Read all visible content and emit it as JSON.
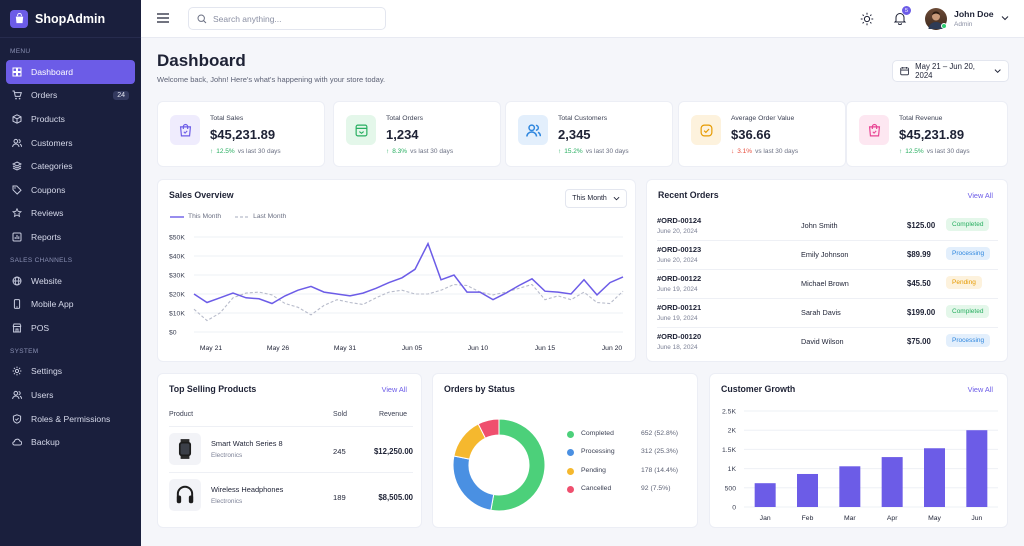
{
  "brand": {
    "name": "ShopAdmin"
  },
  "sidebar": {
    "menu_label": "MENU",
    "menu_items": [
      {
        "label": "Dashboard",
        "icon": "grid-icon",
        "active": true
      },
      {
        "label": "Orders",
        "icon": "cart-icon",
        "badge": "24"
      },
      {
        "label": "Products",
        "icon": "box-icon"
      },
      {
        "label": "Customers",
        "icon": "users-icon"
      },
      {
        "label": "Categories",
        "icon": "layers-icon"
      },
      {
        "label": "Coupons",
        "icon": "tag-icon"
      },
      {
        "label": "Reviews",
        "icon": "star-icon"
      },
      {
        "label": "Reports",
        "icon": "bar-chart-icon"
      }
    ],
    "channels_label": "SALES CHANNELS",
    "channel_items": [
      {
        "label": "Website",
        "icon": "globe-icon"
      },
      {
        "label": "Mobile App",
        "icon": "phone-icon"
      },
      {
        "label": "POS",
        "icon": "store-icon"
      }
    ],
    "system_label": "SYSTEM",
    "system_items": [
      {
        "label": "Settings",
        "icon": "gear-icon"
      },
      {
        "label": "Users",
        "icon": "users-icon"
      },
      {
        "label": "Roles & Permissions",
        "icon": "shield-icon"
      },
      {
        "label": "Backup",
        "icon": "cloud-icon"
      }
    ]
  },
  "topbar": {
    "search_placeholder": "Search anything...",
    "notification_count": "5",
    "user_name": "John Doe",
    "user_role": "Admin"
  },
  "header": {
    "title": "Dashboard",
    "subtitle": "Welcome back, John! Here's what's happening with your store today.",
    "date_range": "May 21 – Jun 20, 2024"
  },
  "stats": [
    {
      "label": "Total Sales",
      "value": "$45,231.89",
      "delta": "12.5%",
      "direction": "up",
      "compare": "vs last 30 days",
      "color": "#6c5ce7",
      "bg": "#efecfd",
      "icon": "bag-icon"
    },
    {
      "label": "Total Orders",
      "value": "1,234",
      "delta": "8.3%",
      "direction": "up",
      "compare": "vs last 30 days",
      "color": "#27ae60",
      "bg": "#e4f7ea",
      "icon": "inbox-icon"
    },
    {
      "label": "Total Customers",
      "value": "2,345",
      "delta": "15.2%",
      "direction": "up",
      "compare": "vs last 30 days",
      "color": "#2e86de",
      "bg": "#e3effc",
      "icon": "users-icon"
    },
    {
      "label": "Average Order Value",
      "value": "$36.66",
      "delta": "3.1%",
      "direction": "down",
      "compare": "vs last 30 days",
      "color": "#e69a00",
      "bg": "#fdf2dd",
      "icon": "badge-check-icon"
    },
    {
      "label": "Total Revenue",
      "value": "$45,231.89",
      "delta": "12.5%",
      "direction": "up",
      "compare": "vs last 30 days",
      "color": "#e84393",
      "bg": "#fde7f1",
      "icon": "bag-icon"
    }
  ],
  "sales_overview": {
    "title": "Sales Overview",
    "period": "This Month"
  },
  "recent_orders": {
    "title": "Recent Orders",
    "view_all": "View All",
    "rows": [
      {
        "id": "#ORD-00124",
        "date": "June 20, 2024",
        "customer": "John Smith",
        "amount": "$125.00",
        "status": "Completed",
        "status_key": "completed"
      },
      {
        "id": "#ORD-00123",
        "date": "June 20, 2024",
        "customer": "Emily Johnson",
        "amount": "$89.99",
        "status": "Processing",
        "status_key": "processing"
      },
      {
        "id": "#ORD-00122",
        "date": "June 19, 2024",
        "customer": "Michael Brown",
        "amount": "$45.50",
        "status": "Pending",
        "status_key": "pending"
      },
      {
        "id": "#ORD-00121",
        "date": "June 19, 2024",
        "customer": "Sarah Davis",
        "amount": "$199.00",
        "status": "Completed",
        "status_key": "completed"
      },
      {
        "id": "#ORD-00120",
        "date": "June 18, 2024",
        "customer": "David Wilson",
        "amount": "$75.00",
        "status": "Processing",
        "status_key": "processing"
      }
    ]
  },
  "top_products": {
    "title": "Top Selling Products",
    "view_all": "View All",
    "columns": [
      "Product",
      "Sold",
      "Revenue"
    ],
    "rows": [
      {
        "name": "Smart Watch Series 8",
        "category": "Electronics",
        "sold": "245",
        "revenue": "$12,250.00",
        "icon": "watch-icon"
      },
      {
        "name": "Wireless Headphones",
        "category": "Electronics",
        "sold": "189",
        "revenue": "$8,505.00",
        "icon": "headphones-icon"
      }
    ]
  },
  "orders_by_status": {
    "title": "Orders by Status"
  },
  "customer_growth": {
    "title": "Customer Growth",
    "view_all": "View All"
  },
  "chart_data": [
    {
      "type": "line",
      "title": "Sales Overview",
      "x_ticks": [
        "May 21",
        "May 26",
        "May 31",
        "Jun 05",
        "Jun 10",
        "Jun 15",
        "Jun 20"
      ],
      "y_ticks": [
        "$0",
        "$10K",
        "$20K",
        "$30K",
        "$40K",
        "$50K"
      ],
      "ylim": [
        0,
        50000
      ],
      "legend_position": "top-left",
      "series": [
        {
          "name": "This Month",
          "color": "#6c5ce7",
          "dashed": false,
          "values": [
            20000,
            15500,
            18000,
            20500,
            18000,
            17500,
            15000,
            19000,
            22000,
            24000,
            21000,
            20000,
            19000,
            20500,
            23000,
            26000,
            28500,
            33000,
            46500,
            27500,
            30000,
            21000,
            21000,
            17000,
            20500,
            24500,
            28000,
            21500,
            21000,
            20000,
            27500,
            19500,
            26000,
            29000
          ]
        },
        {
          "name": "Last Month",
          "color": "#b8bccb",
          "dashed": true,
          "values": [
            12000,
            6000,
            10000,
            18000,
            20500,
            21000,
            19500,
            15000,
            13000,
            9000,
            14000,
            17000,
            15500,
            14500,
            18000,
            21000,
            22000,
            20000,
            20000,
            22000,
            25000,
            24500,
            21000,
            19500,
            21000,
            23000,
            25000,
            17000,
            19000,
            17000,
            21000,
            15500,
            15000,
            21500
          ]
        }
      ]
    },
    {
      "type": "pie",
      "title": "Orders by Status",
      "legend_position": "right",
      "slices": [
        {
          "label": "Completed",
          "value": 652,
          "percent": "52.8%",
          "display": "652 (52.8%)",
          "color": "#4cd07a"
        },
        {
          "label": "Processing",
          "value": 312,
          "percent": "25.3%",
          "display": "312 (25.3%)",
          "color": "#4a90e2"
        },
        {
          "label": "Pending",
          "value": 178,
          "percent": "14.4%",
          "display": "178 (14.4%)",
          "color": "#f5b82e"
        },
        {
          "label": "Cancelled",
          "value": 92,
          "percent": "7.5%",
          "display": "92 (7.5%)",
          "color": "#ef4f6e"
        }
      ]
    },
    {
      "type": "bar",
      "title": "Customer Growth",
      "categories": [
        "Jan",
        "Feb",
        "Mar",
        "Apr",
        "May",
        "Jun"
      ],
      "values": [
        620,
        860,
        1060,
        1300,
        1530,
        2000
      ],
      "y_ticks": [
        "0",
        "500",
        "1K",
        "1.5K",
        "2K",
        "2.5K"
      ],
      "ylim": [
        0,
        2500
      ],
      "color": "#6c5ce7"
    }
  ]
}
